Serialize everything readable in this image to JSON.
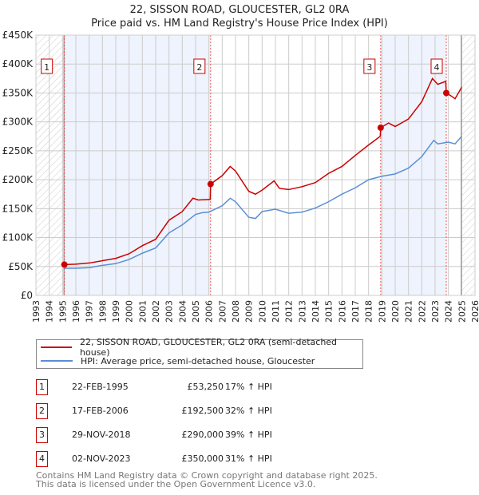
{
  "title": "22, SISSON ROAD, GLOUCESTER, GL2 0RA",
  "subtitle": "Price paid vs. HM Land Registry's House Price Index (HPI)",
  "colors": {
    "property": "#cc0000",
    "hpi": "#5b8fd4",
    "shade": "#eef3fd",
    "grid": "#cccccc"
  },
  "chart_data": {
    "type": "line",
    "title": "22, SISSON ROAD, GLOUCESTER, GL2 0RA",
    "xlim": [
      1993,
      2026
    ],
    "ylim": [
      0,
      450000
    ],
    "x_ticks": [
      1993,
      1994,
      1995,
      1996,
      1997,
      1998,
      1999,
      2000,
      2001,
      2002,
      2003,
      2004,
      2005,
      2006,
      2007,
      2008,
      2009,
      2010,
      2011,
      2012,
      2013,
      2014,
      2015,
      2016,
      2017,
      2018,
      2019,
      2020,
      2021,
      2022,
      2023,
      2024,
      2025,
      2026
    ],
    "y_ticks": [
      {
        "v": 0,
        "label": "£0"
      },
      {
        "v": 50000,
        "label": "£50K"
      },
      {
        "v": 100000,
        "label": "£100K"
      },
      {
        "v": 150000,
        "label": "£150K"
      },
      {
        "v": 200000,
        "label": "£200K"
      },
      {
        "v": 250000,
        "label": "£250K"
      },
      {
        "v": 300000,
        "label": "£300K"
      },
      {
        "v": 350000,
        "label": "£350K"
      },
      {
        "v": 400000,
        "label": "£400K"
      },
      {
        "v": 450000,
        "label": "£450K"
      }
    ],
    "grid": true,
    "series": [
      {
        "name": "22, SISSON ROAD, GLOUCESTER, GL2 0RA (semi-detached house)",
        "color": "#cc0000",
        "x": [
          1995.14,
          1996,
          1997,
          1998,
          1999,
          2000,
          2001,
          2002,
          2003,
          2004,
          2004.8,
          2005.2,
          2006.1,
          2006.13,
          2007,
          2007.6,
          2008,
          2009,
          2009.5,
          2010,
          2010.9,
          2011.3,
          2012,
          2013,
          2014,
          2015,
          2016,
          2017,
          2018,
          2018.88,
          2018.91,
          2019.5,
          2020,
          2021,
          2022,
          2022.8,
          2023.2,
          2023.8,
          2023.84,
          2024.2,
          2024.5,
          2025
        ],
        "y": [
          53250,
          54000,
          56000,
          60000,
          64000,
          72000,
          86000,
          97000,
          130000,
          145000,
          168000,
          165000,
          166000,
          192500,
          207000,
          223000,
          215000,
          180000,
          175000,
          182000,
          198000,
          185000,
          183000,
          188000,
          195000,
          211000,
          223000,
          242000,
          260000,
          275000,
          290000,
          298000,
          292000,
          305000,
          335000,
          375000,
          365000,
          370000,
          350000,
          345000,
          340000,
          360000
        ]
      },
      {
        "name": "HPI: Average price, semi-detached house, Gloucester",
        "color": "#5b8fd4",
        "x": [
          1995.14,
          1996,
          1997,
          1998,
          1999,
          2000,
          2001,
          2002,
          2003,
          2004,
          2005,
          2005.5,
          2006,
          2007,
          2007.6,
          2008,
          2009,
          2009.5,
          2010,
          2011,
          2012,
          2013,
          2014,
          2015,
          2016,
          2017,
          2018,
          2019,
          2020,
          2021,
          2022,
          2022.9,
          2023.2,
          2024,
          2024.5,
          2025
        ],
        "y": [
          47000,
          47000,
          48000,
          52000,
          55000,
          62000,
          73000,
          82000,
          108000,
          122000,
          140000,
          143000,
          144000,
          155000,
          168000,
          162000,
          135000,
          133000,
          145000,
          149000,
          142000,
          144000,
          151000,
          162000,
          175000,
          186000,
          200000,
          206000,
          210000,
          220000,
          240000,
          268000,
          262000,
          265000,
          262000,
          275000
        ]
      }
    ],
    "sales": [
      {
        "n": "1",
        "x": 1995.14,
        "y": 53250
      },
      {
        "n": "2",
        "x": 2006.13,
        "y": 192500
      },
      {
        "n": "3",
        "x": 2018.91,
        "y": 290000
      },
      {
        "n": "4",
        "x": 2023.84,
        "y": 350000
      }
    ],
    "shaded": [
      [
        1995.14,
        2006.13
      ],
      [
        2018.91,
        2023.84
      ]
    ],
    "hatched": [
      [
        1993,
        1995.14
      ],
      [
        2025,
        2026
      ]
    ]
  },
  "legend": {
    "property": "22, SISSON ROAD, GLOUCESTER, GL2 0RA (semi-detached house)",
    "hpi": "HPI: Average price, semi-detached house, Gloucester"
  },
  "table": [
    {
      "n": "1",
      "date": "22-FEB-1995",
      "price": "£53,250",
      "hpi": "17% ↑ HPI"
    },
    {
      "n": "2",
      "date": "17-FEB-2006",
      "price": "£192,500",
      "hpi": "32% ↑ HPI"
    },
    {
      "n": "3",
      "date": "29-NOV-2018",
      "price": "£290,000",
      "hpi": "39% ↑ HPI"
    },
    {
      "n": "4",
      "date": "02-NOV-2023",
      "price": "£350,000",
      "hpi": "31% ↑ HPI"
    }
  ],
  "footer": [
    "Contains HM Land Registry data © Crown copyright and database right 2025.",
    "This data is licensed under the Open Government Licence v3.0."
  ]
}
